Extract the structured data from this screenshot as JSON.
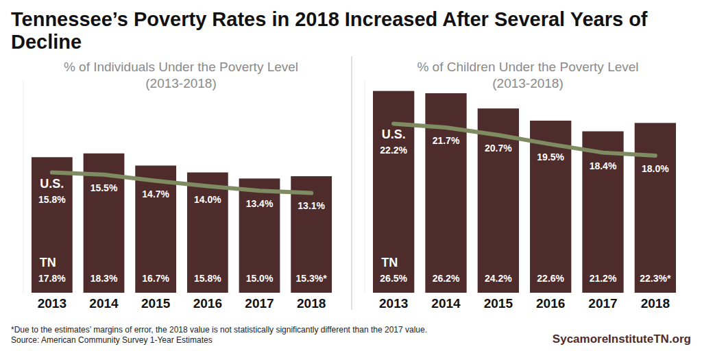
{
  "title": "Tennessee’s Poverty Rates in 2018 Increased After Several Years of Decline",
  "notes": [
    "*Due to the estimates’ margins of error, the 2018 value is not statistically significantly different than the 2017 value.",
    "Source: American Community Survey 1-Year Estimates"
  ],
  "credit": "SycamoreInstituteTN.org",
  "chart_data": [
    {
      "type": "bar",
      "title": "% of Individuals Under the Poverty Level",
      "subtitle": "(2013-2018)",
      "categories": [
        "2013",
        "2014",
        "2015",
        "2016",
        "2017",
        "2018"
      ],
      "series": [
        {
          "name": "TN",
          "type": "bar",
          "color": "#4e2c2c",
          "values": [
            17.8,
            18.3,
            16.7,
            15.8,
            15.0,
            15.3
          ],
          "value_labels": [
            "17.8%",
            "18.3%",
            "16.7%",
            "15.8%",
            "15.0%",
            "15.3%*"
          ]
        },
        {
          "name": "U.S.",
          "type": "line",
          "color": "#7f8c62",
          "values": [
            15.8,
            15.5,
            14.7,
            14.0,
            13.4,
            13.1
          ],
          "value_labels": [
            "15.8%",
            "15.5%",
            "14.7%",
            "14.0%",
            "13.4%",
            "13.1%"
          ]
        }
      ],
      "ylim": [
        0,
        28
      ],
      "tick_labels": "x",
      "data_labels": true
    },
    {
      "type": "bar",
      "title": "% of Children Under the Poverty Level",
      "subtitle": "(2013-2018)",
      "categories": [
        "2013",
        "2014",
        "2015",
        "2016",
        "2017",
        "2018"
      ],
      "series": [
        {
          "name": "TN",
          "type": "bar",
          "color": "#4e2c2c",
          "values": [
            26.5,
            26.2,
            24.2,
            22.6,
            21.2,
            22.3
          ],
          "value_labels": [
            "26.5%",
            "26.2%",
            "24.2%",
            "22.6%",
            "21.2%",
            "22.3%*"
          ]
        },
        {
          "name": "U.S.",
          "type": "line",
          "color": "#7f8c62",
          "values": [
            22.2,
            21.7,
            20.7,
            19.5,
            18.4,
            18.0
          ],
          "value_labels": [
            "22.2%",
            "21.7%",
            "20.7%",
            "19.5%",
            "18.4%",
            "18.0%"
          ]
        }
      ],
      "ylim": [
        0,
        28
      ],
      "tick_labels": "x",
      "data_labels": true
    }
  ]
}
